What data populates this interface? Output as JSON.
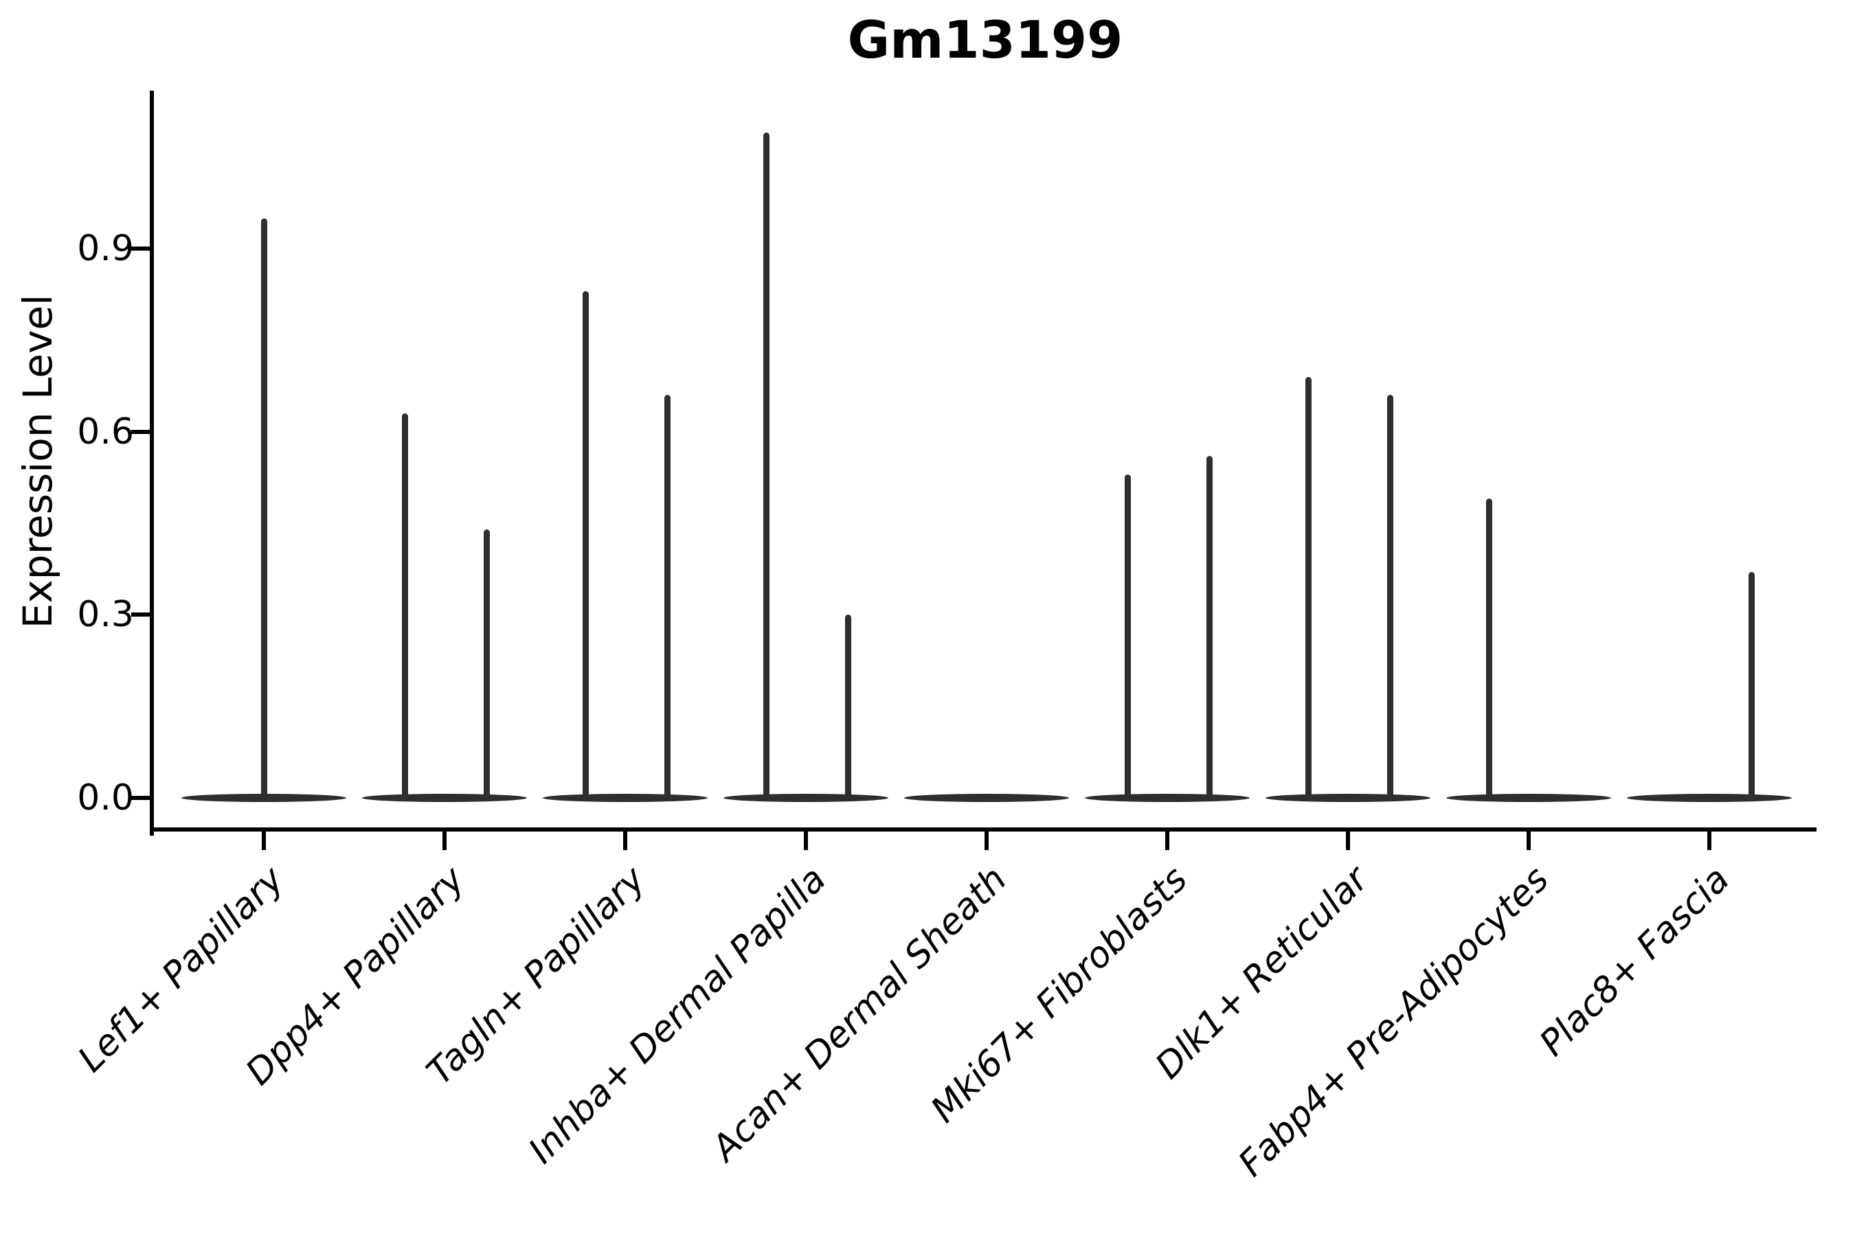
{
  "chart_data": {
    "type": "violin",
    "title": "Gm13199",
    "xlabel": "",
    "ylabel": "Expression Level",
    "ylim": [
      0.0,
      1.15
    ],
    "yticks": [
      0.0,
      0.3,
      0.6,
      0.9
    ],
    "ytick_labels": [
      "0.0",
      "0.3",
      "0.6",
      "0.9"
    ],
    "grid": false,
    "legend": "none",
    "categories": [
      "Lef1+ Papillary",
      "Dpp4+ Papillary",
      "Tagln+ Papillary",
      "Inhba+ Dermal Papilla",
      "Acan+ Dermal Sheath",
      "Mki67+ Fibroblasts",
      "Dlk1+ Reticular",
      "Fabp4+ Pre-Adipocytes",
      "Plac8+ Fascia"
    ],
    "violins": [
      {
        "category": "Lef1+ Papillary",
        "baseline_value": 0.0,
        "spikes": [
          {
            "align": "center",
            "max": 0.95
          }
        ]
      },
      {
        "category": "Dpp4+ Papillary",
        "baseline_value": 0.0,
        "spikes": [
          {
            "align": "left",
            "max": 0.63
          },
          {
            "align": "right",
            "max": 0.44
          }
        ]
      },
      {
        "category": "Tagln+ Papillary",
        "baseline_value": 0.0,
        "spikes": [
          {
            "align": "left",
            "max": 0.83
          },
          {
            "align": "right",
            "max": 0.66
          }
        ]
      },
      {
        "category": "Inhba+ Dermal Papilla",
        "baseline_value": 0.0,
        "spikes": [
          {
            "align": "left",
            "max": 1.09
          },
          {
            "align": "right",
            "max": 0.3
          }
        ]
      },
      {
        "category": "Acan+ Dermal Sheath",
        "baseline_value": 0.0,
        "spikes": []
      },
      {
        "category": "Mki67+ Fibroblasts",
        "baseline_value": 0.0,
        "spikes": [
          {
            "align": "left",
            "max": 0.53
          },
          {
            "align": "right",
            "max": 0.56
          }
        ]
      },
      {
        "category": "Dlk1+ Reticular",
        "baseline_value": 0.0,
        "spikes": [
          {
            "align": "left",
            "max": 0.69
          },
          {
            "align": "right",
            "max": 0.66
          }
        ]
      },
      {
        "category": "Fabp4+ Pre-Adipocytes",
        "baseline_value": 0.0,
        "spikes": [
          {
            "align": "left",
            "max": 0.49
          }
        ]
      },
      {
        "category": "Plac8+ Fascia",
        "baseline_value": 0.0,
        "spikes": [
          {
            "align": "right",
            "max": 0.37
          }
        ]
      }
    ],
    "notes": "Violin plot of gene expression; each violin is collapsed to a flat bar at 0 with a thin density spike reaching the maximum expression value."
  },
  "colors": {
    "violin": "#2e2e2e",
    "axis": "#000000",
    "text": "#000000",
    "background": "#ffffff"
  }
}
